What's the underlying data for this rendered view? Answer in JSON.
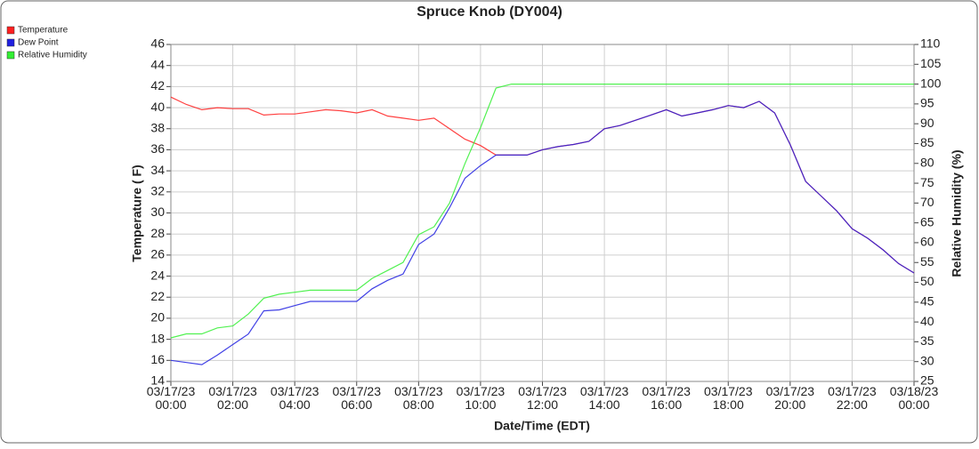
{
  "chart_data": {
    "type": "line",
    "title": "Spruce Knob (DY004)",
    "xlabel": "Date/Time (EDT)",
    "ylabel": "Temperature ( F)",
    "y2label": "Relative Humidity (%)",
    "legend": "top-left",
    "grid": true,
    "x": [
      "03/17/23 00:00",
      "03/17/23 00:30",
      "03/17/23 01:00",
      "03/17/23 01:30",
      "03/17/23 02:00",
      "03/17/23 02:30",
      "03/17/23 03:00",
      "03/17/23 03:30",
      "03/17/23 04:00",
      "03/17/23 04:30",
      "03/17/23 05:00",
      "03/17/23 05:30",
      "03/17/23 06:00",
      "03/17/23 06:30",
      "03/17/23 07:00",
      "03/17/23 07:30",
      "03/17/23 08:00",
      "03/17/23 08:30",
      "03/17/23 09:00",
      "03/17/23 09:30",
      "03/17/23 10:00",
      "03/17/23 10:30",
      "03/17/23 11:00",
      "03/17/23 11:30",
      "03/17/23 12:00",
      "03/17/23 12:30",
      "03/17/23 13:00",
      "03/17/23 13:30",
      "03/17/23 14:00",
      "03/17/23 14:30",
      "03/17/23 15:00",
      "03/17/23 15:30",
      "03/17/23 16:00",
      "03/17/23 16:30",
      "03/17/23 17:00",
      "03/17/23 17:30",
      "03/17/23 18:00",
      "03/17/23 18:30",
      "03/17/23 19:00",
      "03/17/23 19:30",
      "03/17/23 20:00",
      "03/17/23 20:30",
      "03/17/23 21:00",
      "03/17/23 21:30",
      "03/17/23 22:00",
      "03/17/23 22:30",
      "03/17/23 23:00",
      "03/17/23 23:30",
      "03/18/23 00:00"
    ],
    "series": [
      {
        "name": "Temperature",
        "color": "#ff2020",
        "values": [
          41.0,
          40.3,
          39.8,
          40.0,
          39.9,
          39.9,
          39.3,
          39.4,
          39.4,
          39.6,
          39.8,
          39.7,
          39.5,
          39.8,
          39.2,
          39.0,
          38.8,
          39.0,
          38.0,
          37.0,
          36.4,
          35.5,
          35.5,
          35.5,
          36.0,
          36.3,
          36.5,
          36.8,
          38.0,
          38.3,
          38.8,
          39.3,
          39.8,
          39.2,
          39.5,
          39.8,
          40.2,
          40.0,
          40.6,
          39.5,
          36.5,
          33.0,
          31.6,
          30.2,
          28.5,
          27.6,
          26.5,
          25.2,
          24.3
        ]
      },
      {
        "name": "Dew Point",
        "color": "#2020e0",
        "values": [
          16.0,
          15.8,
          15.6,
          16.5,
          17.5,
          18.5,
          20.7,
          20.8,
          21.2,
          21.6,
          21.6,
          21.6,
          21.6,
          22.8,
          23.6,
          24.2,
          27.0,
          28.0,
          30.5,
          33.3,
          34.5,
          35.5,
          35.5,
          35.5,
          36.0,
          36.3,
          36.5,
          36.8,
          38.0,
          38.3,
          38.8,
          39.3,
          39.8,
          39.2,
          39.5,
          39.8,
          40.2,
          40.0,
          40.6,
          39.5,
          36.5,
          33.0,
          31.6,
          30.2,
          28.5,
          27.6,
          26.5,
          25.2,
          24.3
        ]
      },
      {
        "name": "Relative Humidity",
        "color": "#33ee33",
        "axis": "y2",
        "values": [
          36,
          37,
          37,
          38.5,
          39,
          42,
          46,
          47,
          47.5,
          48,
          48,
          48,
          48,
          51,
          53,
          55,
          62,
          64,
          70,
          80,
          89,
          99,
          100,
          100,
          100,
          100,
          100,
          100,
          100,
          100,
          100,
          100,
          100,
          100,
          100,
          100,
          100,
          100,
          100,
          100,
          100,
          100,
          100,
          100,
          100,
          100,
          100,
          100,
          100
        ]
      }
    ],
    "xlim": [
      "03/17/23 00:00",
      "03/18/23 00:00"
    ],
    "xticks": [
      "03/17/23 00:00",
      "03/17/23 02:00",
      "03/17/23 04:00",
      "03/17/23 06:00",
      "03/17/23 08:00",
      "03/17/23 10:00",
      "03/17/23 12:00",
      "03/17/23 14:00",
      "03/17/23 16:00",
      "03/17/23 18:00",
      "03/17/23 20:00",
      "03/17/23 22:00",
      "03/18/23 00:00"
    ],
    "ylim": [
      14,
      46
    ],
    "yticks": [
      14,
      16,
      18,
      20,
      22,
      24,
      26,
      28,
      30,
      32,
      34,
      36,
      38,
      40,
      42,
      44,
      46
    ],
    "y2lim": [
      25,
      110
    ],
    "y2ticks": [
      25,
      30,
      35,
      40,
      45,
      50,
      55,
      60,
      65,
      70,
      75,
      80,
      85,
      90,
      95,
      100,
      105,
      110
    ]
  }
}
